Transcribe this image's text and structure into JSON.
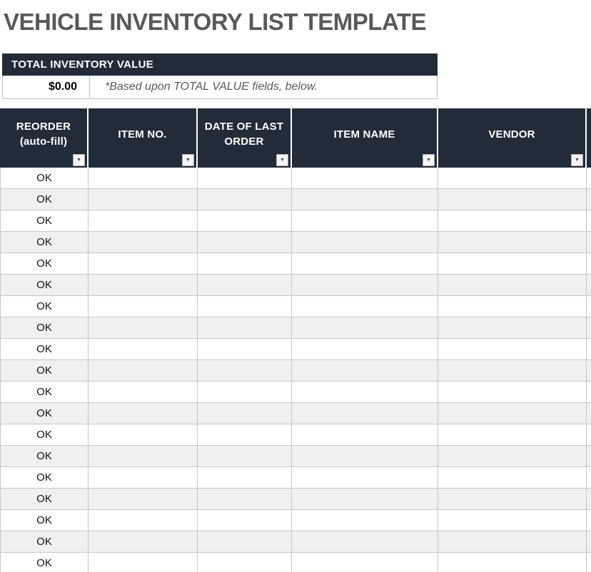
{
  "page": {
    "title": "VEHICLE INVENTORY LIST TEMPLATE"
  },
  "colors": {
    "header_bg": "#222B38",
    "title_text": "#58595B",
    "stripe": "#F0F0F0",
    "grid_line": "#C6C6C6",
    "note_text": "#595959"
  },
  "summary": {
    "title": "TOTAL INVENTORY VALUE",
    "value": "$0.00",
    "note": "*Based upon TOTAL VALUE fields, below."
  },
  "icons": {
    "filter_dropdown": "▼"
  },
  "table": {
    "columns": [
      {
        "id": "reorder",
        "label": "REORDER (auto-fill)"
      },
      {
        "id": "item_no",
        "label": "ITEM NO."
      },
      {
        "id": "date_of_last_order",
        "label": "DATE OF LAST ORDER"
      },
      {
        "id": "item_name",
        "label": "ITEM NAME"
      },
      {
        "id": "vendor",
        "label": "VENDOR"
      }
    ],
    "rows": [
      {
        "reorder": "OK",
        "item_no": "",
        "date_of_last_order": "",
        "item_name": "",
        "vendor": ""
      },
      {
        "reorder": "OK",
        "item_no": "",
        "date_of_last_order": "",
        "item_name": "",
        "vendor": ""
      },
      {
        "reorder": "OK",
        "item_no": "",
        "date_of_last_order": "",
        "item_name": "",
        "vendor": ""
      },
      {
        "reorder": "OK",
        "item_no": "",
        "date_of_last_order": "",
        "item_name": "",
        "vendor": ""
      },
      {
        "reorder": "OK",
        "item_no": "",
        "date_of_last_order": "",
        "item_name": "",
        "vendor": ""
      },
      {
        "reorder": "OK",
        "item_no": "",
        "date_of_last_order": "",
        "item_name": "",
        "vendor": ""
      },
      {
        "reorder": "OK",
        "item_no": "",
        "date_of_last_order": "",
        "item_name": "",
        "vendor": ""
      },
      {
        "reorder": "OK",
        "item_no": "",
        "date_of_last_order": "",
        "item_name": "",
        "vendor": ""
      },
      {
        "reorder": "OK",
        "item_no": "",
        "date_of_last_order": "",
        "item_name": "",
        "vendor": ""
      },
      {
        "reorder": "OK",
        "item_no": "",
        "date_of_last_order": "",
        "item_name": "",
        "vendor": ""
      },
      {
        "reorder": "OK",
        "item_no": "",
        "date_of_last_order": "",
        "item_name": "",
        "vendor": ""
      },
      {
        "reorder": "OK",
        "item_no": "",
        "date_of_last_order": "",
        "item_name": "",
        "vendor": ""
      },
      {
        "reorder": "OK",
        "item_no": "",
        "date_of_last_order": "",
        "item_name": "",
        "vendor": ""
      },
      {
        "reorder": "OK",
        "item_no": "",
        "date_of_last_order": "",
        "item_name": "",
        "vendor": ""
      },
      {
        "reorder": "OK",
        "item_no": "",
        "date_of_last_order": "",
        "item_name": "",
        "vendor": ""
      },
      {
        "reorder": "OK",
        "item_no": "",
        "date_of_last_order": "",
        "item_name": "",
        "vendor": ""
      },
      {
        "reorder": "OK",
        "item_no": "",
        "date_of_last_order": "",
        "item_name": "",
        "vendor": ""
      },
      {
        "reorder": "OK",
        "item_no": "",
        "date_of_last_order": "",
        "item_name": "",
        "vendor": ""
      },
      {
        "reorder": "OK",
        "item_no": "",
        "date_of_last_order": "",
        "item_name": "",
        "vendor": ""
      }
    ]
  }
}
